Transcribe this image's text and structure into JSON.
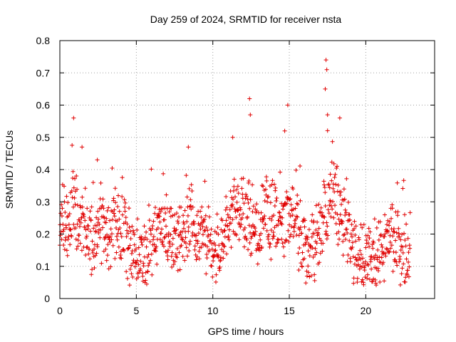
{
  "chart_data": {
    "type": "scatter",
    "title": "Day 259 of 2024, SRMTID for receiver nsta",
    "xlabel": "GPS time / hours",
    "ylabel": "SRMTID / TECUs",
    "xlim": [
      0,
      24.5
    ],
    "ylim": [
      0,
      0.8
    ],
    "x_ticks": [
      0,
      5,
      10,
      15,
      20
    ],
    "x_tick_labels": [
      "0",
      "5",
      "10",
      "15",
      "20"
    ],
    "y_ticks": [
      0,
      0.1,
      0.2,
      0.3,
      0.4,
      0.5,
      0.6,
      0.7,
      0.8
    ],
    "y_tick_labels": [
      "0",
      "0.1",
      "0.2",
      "0.3",
      "0.4",
      "0.5",
      "0.6",
      "0.7",
      "0.8"
    ],
    "grid": true,
    "marker": "+",
    "series_color": "#e00000",
    "x_step_hours": 0.02,
    "point_count_note": "approx. 1150 observations from 0 to ~22.9 h",
    "trend_profile": [
      [
        0.0,
        0.24
      ],
      [
        0.5,
        0.22
      ],
      [
        0.9,
        0.3
      ],
      [
        1.3,
        0.22
      ],
      [
        1.8,
        0.2
      ],
      [
        2.2,
        0.17
      ],
      [
        2.6,
        0.22
      ],
      [
        3.0,
        0.18
      ],
      [
        3.5,
        0.22
      ],
      [
        4.0,
        0.24
      ],
      [
        4.4,
        0.17
      ],
      [
        5.0,
        0.13
      ],
      [
        5.5,
        0.12
      ],
      [
        6.0,
        0.16
      ],
      [
        6.5,
        0.22
      ],
      [
        7.0,
        0.2
      ],
      [
        7.5,
        0.17
      ],
      [
        8.0,
        0.21
      ],
      [
        8.5,
        0.24
      ],
      [
        9.0,
        0.22
      ],
      [
        9.5,
        0.18
      ],
      [
        10.0,
        0.14
      ],
      [
        10.5,
        0.14
      ],
      [
        11.0,
        0.22
      ],
      [
        11.5,
        0.28
      ],
      [
        12.0,
        0.26
      ],
      [
        12.5,
        0.24
      ],
      [
        13.0,
        0.22
      ],
      [
        13.5,
        0.26
      ],
      [
        14.0,
        0.24
      ],
      [
        14.5,
        0.22
      ],
      [
        15.0,
        0.28
      ],
      [
        15.5,
        0.22
      ],
      [
        16.0,
        0.16
      ],
      [
        16.5,
        0.14
      ],
      [
        17.0,
        0.2
      ],
      [
        17.5,
        0.3
      ],
      [
        18.0,
        0.32
      ],
      [
        18.5,
        0.24
      ],
      [
        19.0,
        0.17
      ],
      [
        19.5,
        0.14
      ],
      [
        20.0,
        0.12
      ],
      [
        20.5,
        0.12
      ],
      [
        21.0,
        0.14
      ],
      [
        21.5,
        0.17
      ],
      [
        22.0,
        0.17
      ],
      [
        22.5,
        0.16
      ],
      [
        22.9,
        0.15
      ]
    ],
    "spikes": [
      {
        "x": 0.9,
        "y": 0.56
      },
      {
        "x": 1.45,
        "y": 0.47
      },
      {
        "x": 2.45,
        "y": 0.43
      },
      {
        "x": 8.4,
        "y": 0.47
      },
      {
        "x": 11.3,
        "y": 0.5
      },
      {
        "x": 12.4,
        "y": 0.62
      },
      {
        "x": 12.45,
        "y": 0.57
      },
      {
        "x": 14.9,
        "y": 0.6
      },
      {
        "x": 14.7,
        "y": 0.52
      },
      {
        "x": 17.4,
        "y": 0.74
      },
      {
        "x": 17.45,
        "y": 0.71
      },
      {
        "x": 17.35,
        "y": 0.65
      },
      {
        "x": 17.5,
        "y": 0.57
      },
      {
        "x": 18.3,
        "y": 0.56
      }
    ]
  }
}
